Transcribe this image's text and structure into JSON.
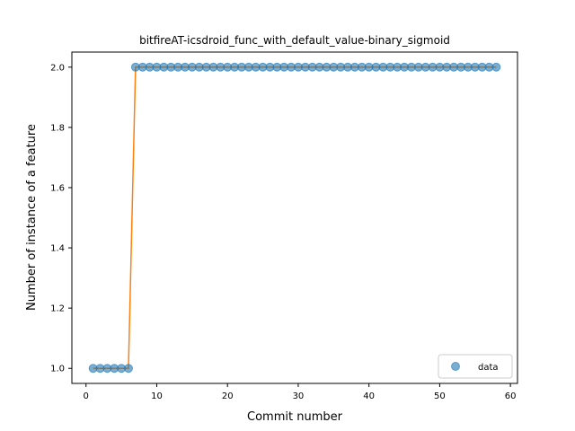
{
  "chart_data": {
    "type": "scatter",
    "title": "bitfireAT-icsdroid_func_with_default_value-binary_sigmoid",
    "xlabel": "Commit number",
    "ylabel": "Number of instance of a feature",
    "xlim": [
      -2,
      61
    ],
    "ylim": [
      0.95,
      2.05
    ],
    "xticks": [
      0,
      10,
      20,
      30,
      40,
      50,
      60
    ],
    "yticks": [
      1.0,
      1.2,
      1.4,
      1.6,
      1.8,
      2.0
    ],
    "xtick_labels": [
      "0",
      "10",
      "20",
      "30",
      "40",
      "50",
      "60"
    ],
    "ytick_labels": [
      "1.0",
      "1.2",
      "1.4",
      "1.6",
      "1.8",
      "2.0"
    ],
    "grid": false,
    "legend": {
      "position": "lower-right",
      "entries": [
        "data"
      ]
    },
    "colors": {
      "points": "#1f77b4",
      "fit": "#ff7f0e"
    },
    "series": [
      {
        "name": "data",
        "x": [
          1,
          2,
          3,
          4,
          5,
          6,
          7,
          8,
          9,
          10,
          11,
          12,
          13,
          14,
          15,
          16,
          17,
          18,
          19,
          20,
          21,
          22,
          23,
          24,
          25,
          26,
          27,
          28,
          29,
          30,
          31,
          32,
          33,
          34,
          35,
          36,
          37,
          38,
          39,
          40,
          41,
          42,
          43,
          44,
          45,
          46,
          47,
          48,
          49,
          50,
          51,
          52,
          53,
          54,
          55,
          56,
          57,
          58
        ],
        "y": [
          1,
          1,
          1,
          1,
          1,
          1,
          2,
          2,
          2,
          2,
          2,
          2,
          2,
          2,
          2,
          2,
          2,
          2,
          2,
          2,
          2,
          2,
          2,
          2,
          2,
          2,
          2,
          2,
          2,
          2,
          2,
          2,
          2,
          2,
          2,
          2,
          2,
          2,
          2,
          2,
          2,
          2,
          2,
          2,
          2,
          2,
          2,
          2,
          2,
          2,
          2,
          2,
          2,
          2,
          2,
          2,
          2,
          2
        ]
      }
    ],
    "fit_line": {
      "x": [
        1,
        2,
        3,
        4,
        5,
        6,
        7,
        8,
        9,
        10,
        11,
        12,
        13,
        14,
        15,
        16,
        17,
        18,
        19,
        20,
        21,
        22,
        23,
        24,
        25,
        26,
        27,
        28,
        29,
        30,
        31,
        32,
        33,
        34,
        35,
        36,
        37,
        38,
        39,
        40,
        41,
        42,
        43,
        44,
        45,
        46,
        47,
        48,
        49,
        50,
        51,
        52,
        53,
        54,
        55,
        56,
        57,
        58
      ],
      "y": [
        1,
        1,
        1,
        1,
        1,
        1,
        2,
        2,
        2,
        2,
        2,
        2,
        2,
        2,
        2,
        2,
        2,
        2,
        2,
        2,
        2,
        2,
        2,
        2,
        2,
        2,
        2,
        2,
        2,
        2,
        2,
        2,
        2,
        2,
        2,
        2,
        2,
        2,
        2,
        2,
        2,
        2,
        2,
        2,
        2,
        2,
        2,
        2,
        2,
        2,
        2,
        2,
        2,
        2,
        2,
        2,
        2,
        2
      ]
    }
  }
}
